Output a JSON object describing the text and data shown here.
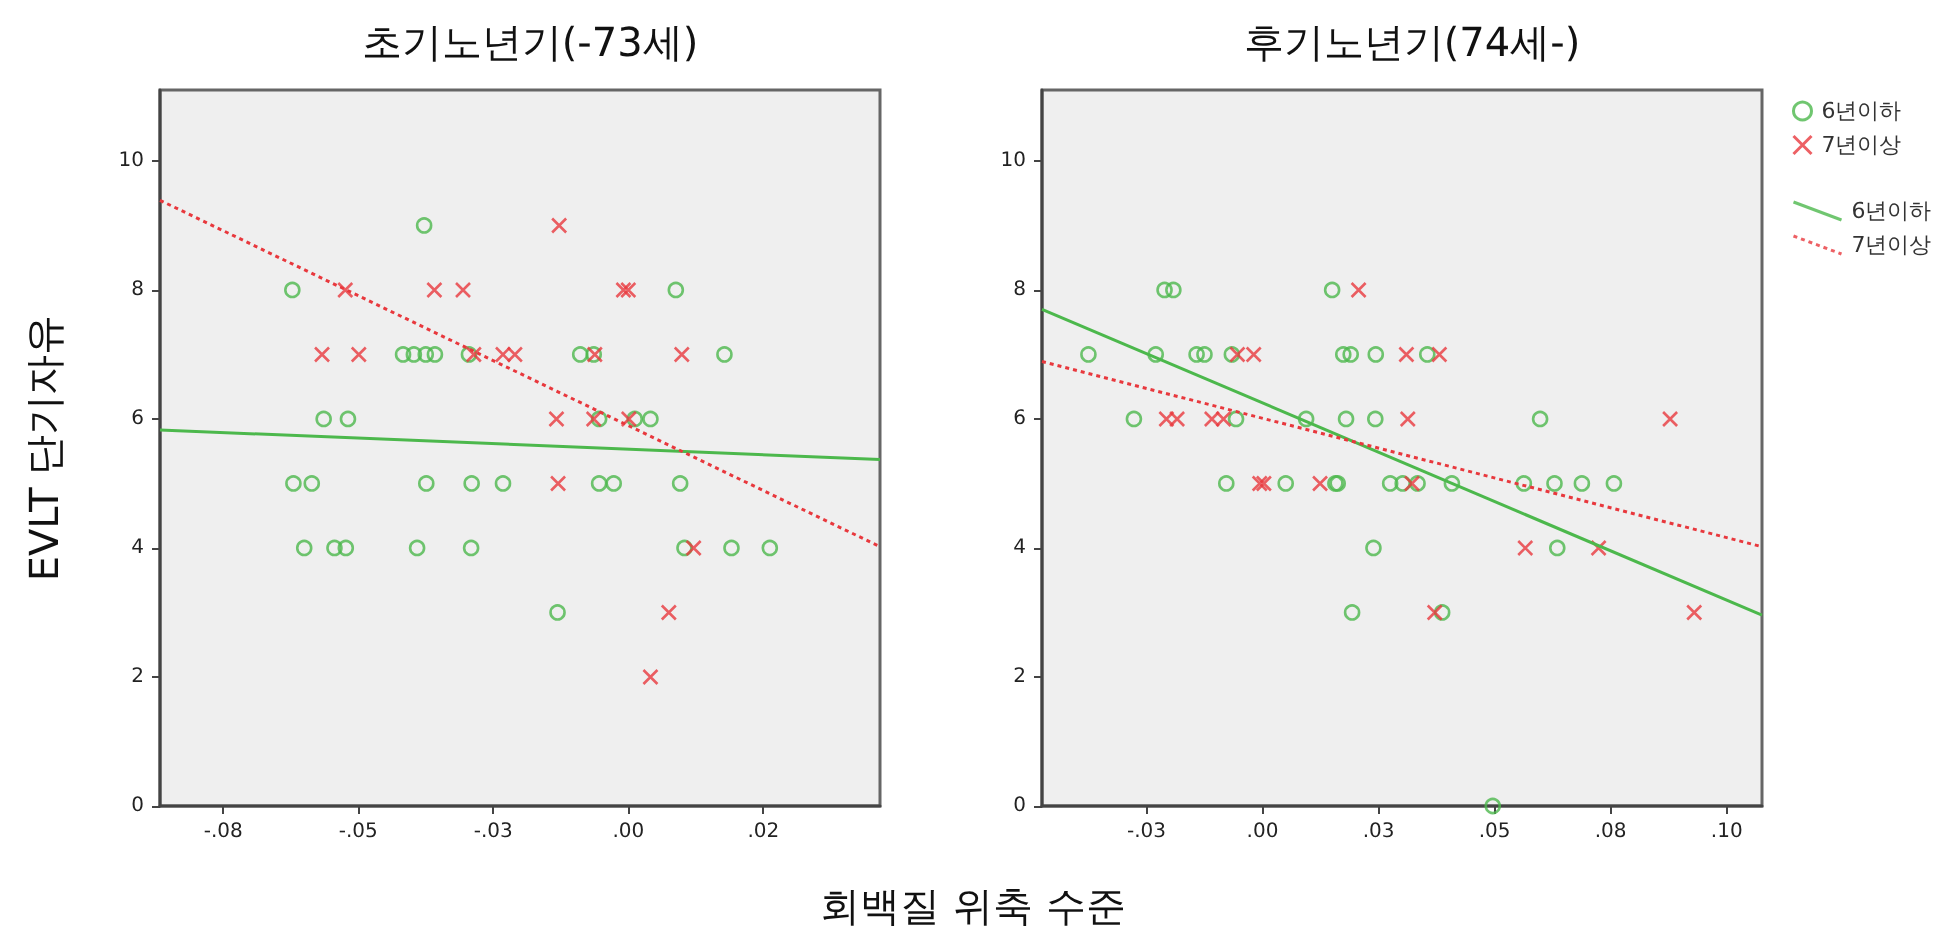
{
  "chart_data": [
    {
      "type": "scatter",
      "title": "초기노년기(-73세)",
      "ylabel": "EVLT 단기자유",
      "xlabel": "회백질 위축 수준",
      "xlim": [
        -0.0867,
        0.0466
      ],
      "ylim": [
        0,
        11.1
      ],
      "xticks": [
        {
          "value": -0.075,
          "label": "-.08"
        },
        {
          "value": -0.05,
          "label": "-.05"
        },
        {
          "value": -0.025,
          "label": "-.03"
        },
        {
          "value": 0,
          "label": ".00"
        },
        {
          "value": 0.025,
          "label": ".02"
        }
      ],
      "yticks": [
        0,
        2,
        4,
        6,
        8,
        10
      ],
      "grid": false,
      "series": [
        {
          "type": "scatter",
          "marker": "circle",
          "color": "#4cb84c",
          "x": [
            -0.0378,
            -0.0622,
            0.0088,
            -0.0417,
            -0.0397,
            -0.0375,
            -0.0358,
            -0.0295,
            -0.0089,
            -0.0064,
            0.0178,
            -0.0564,
            -0.0519,
            -0.0054,
            0.0012,
            0.0041,
            -0.062,
            -0.0586,
            -0.0374,
            -0.029,
            -0.0232,
            -0.0054,
            -0.0027,
            0.0096,
            -0.06,
            -0.0544,
            -0.0523,
            -0.0391,
            -0.0291,
            0.0104,
            0.0191,
            0.0262,
            -0.0131
          ],
          "values": [
            9,
            8,
            8,
            7,
            7,
            7,
            7,
            7,
            7,
            7,
            7,
            6,
            6,
            6,
            6,
            6,
            5,
            5,
            5,
            5,
            5,
            5,
            5,
            5,
            4,
            4,
            4,
            4,
            4,
            4,
            4,
            4,
            3
          ]
        },
        {
          "type": "scatter",
          "marker": "cross",
          "color": "#e8383d",
          "x": [
            -0.0128,
            -0.0524,
            -0.0359,
            -0.0306,
            -0.0009,
            0.0,
            -0.0567,
            -0.0499,
            -0.0286,
            -0.0232,
            -0.021,
            -0.0062,
            0.0099,
            -0.0133,
            -0.0064,
            0.0001,
            -0.013,
            0.0121,
            0.0075,
            0.0041
          ],
          "values": [
            9,
            8,
            8,
            8,
            8,
            8,
            7,
            7,
            7,
            7,
            7,
            7,
            7,
            6,
            6,
            6,
            5,
            4,
            3,
            2
          ]
        },
        {
          "type": "line",
          "marker": "none",
          "line_style": "solid",
          "color": "#4cb84c",
          "x": [
            -0.0867,
            0.0466
          ],
          "values": [
            5.83,
            5.37
          ]
        },
        {
          "type": "line",
          "marker": "none",
          "line_style": "dotted",
          "color": "#e8383d",
          "x": [
            -0.0867,
            0.0466
          ],
          "values": [
            9.39,
            4.02
          ]
        }
      ]
    },
    {
      "type": "scatter",
      "title": "후기노년기(74세-)",
      "legend": "right",
      "xlim": [
        -0.0475,
        0.1076
      ],
      "ylim": [
        0,
        11.1
      ],
      "xticks": [
        {
          "value": -0.025,
          "label": "-.03"
        },
        {
          "value": 0,
          "label": ".00"
        },
        {
          "value": 0.025,
          "label": ".03"
        },
        {
          "value": 0.05,
          "label": ".05"
        },
        {
          "value": 0.075,
          "label": ".08"
        },
        {
          "value": 0.1,
          "label": ".10"
        }
      ],
      "yticks": [
        0,
        2,
        4,
        6,
        8,
        10
      ],
      "grid": false,
      "series": [
        {
          "type": "scatter",
          "name": "6년이하",
          "marker": "circle",
          "color": "#4cb84c",
          "x": [
            -0.0211,
            -0.0192,
            0.015,
            -0.0375,
            -0.023,
            -0.0142,
            -0.0125,
            -0.0066,
            0.0174,
            0.019,
            0.0244,
            0.0355,
            -0.0277,
            -0.0057,
            0.0094,
            0.018,
            0.0243,
            0.0598,
            -0.0078,
            0.005,
            0.0157,
            0.0162,
            0.0275,
            0.0302,
            0.0334,
            0.0408,
            0.0563,
            0.0629,
            0.0688,
            0.0757,
            0.0239,
            0.0635,
            0.0193,
            0.0387,
            0.0496
          ],
          "values": [
            8,
            8,
            8,
            7,
            7,
            7,
            7,
            7,
            7,
            7,
            7,
            7,
            6,
            6,
            6,
            6,
            6,
            6,
            5,
            5,
            5,
            5,
            5,
            5,
            5,
            5,
            5,
            5,
            5,
            5,
            4,
            4,
            3,
            3,
            0
          ]
        },
        {
          "type": "scatter",
          "name": "7년이상",
          "marker": "cross",
          "color": "#e8383d",
          "x": [
            0.0207,
            -0.0054,
            -0.0019,
            0.031,
            0.0381,
            -0.0207,
            -0.0184,
            -0.0109,
            -0.0084,
            0.0313,
            0.0878,
            -0.0006,
            0.0003,
            0.0124,
            0.0322,
            0.0566,
            0.0724,
            0.0371,
            0.093
          ],
          "values": [
            8,
            7,
            7,
            7,
            7,
            6,
            6,
            6,
            6,
            6,
            6,
            5,
            5,
            5,
            5,
            4,
            4,
            3,
            3
          ]
        },
        {
          "type": "line",
          "name": "6년이하",
          "marker": "none",
          "line_style": "solid",
          "color": "#4cb84c",
          "x": [
            -0.0475,
            0.1076
          ],
          "values": [
            7.7,
            2.96
          ]
        },
        {
          "type": "line",
          "name": "7년이상",
          "marker": "none",
          "line_style": "dotted",
          "color": "#e8383d",
          "x": [
            -0.0475,
            0.1076
          ],
          "values": [
            6.89,
            4.02
          ]
        }
      ]
    }
  ]
}
